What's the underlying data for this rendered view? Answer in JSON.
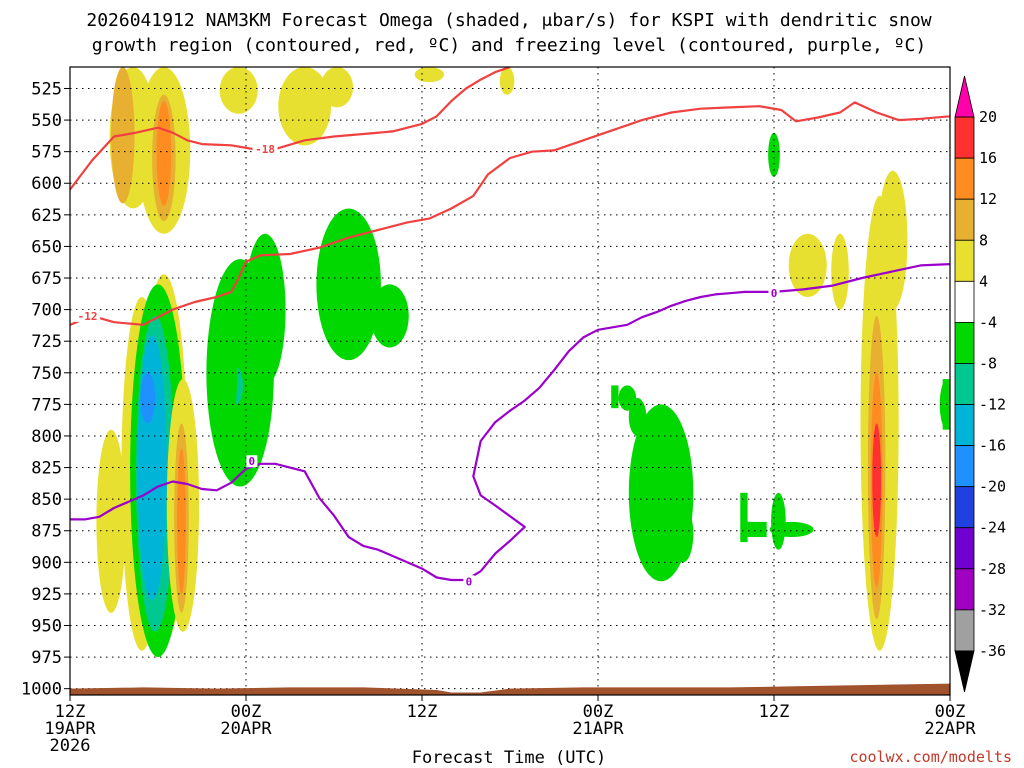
{
  "chart_data": {
    "type": "heatmap",
    "title_line1": "2026041912 NAM3KM Forecast Omega (shaded, μbar/s) for KSPI with dendritic snow",
    "title_line2": "growth region (contoured, red, ºC) and freezing level (contoured, purple, ºC)",
    "xlabel": "Forecast Time (UTC)",
    "credit": "coolwx.com/modelts",
    "y_axis": {
      "ylim_hPa": [
        1005,
        508
      ],
      "ticks": [
        "525",
        "550",
        "575",
        "600",
        "625",
        "650",
        "675",
        "700",
        "725",
        "750",
        "775",
        "800",
        "825",
        "850",
        "875",
        "900",
        "925",
        "950",
        "975",
        "1000"
      ]
    },
    "x_axis": {
      "xlim_hours": [
        0,
        60
      ],
      "ticks": [
        {
          "hour": 0,
          "line1": "12Z",
          "line2": "19APR",
          "line3": "2026"
        },
        {
          "hour": 12,
          "line1": "00Z",
          "line2": "20APR",
          "line3": ""
        },
        {
          "hour": 24,
          "line1": "12Z",
          "line2": "",
          "line3": ""
        },
        {
          "hour": 36,
          "line1": "00Z",
          "line2": "21APR",
          "line3": ""
        },
        {
          "hour": 48,
          "line1": "12Z",
          "line2": "",
          "line3": ""
        },
        {
          "hour": 60,
          "line1": "00Z",
          "line2": "22APR",
          "line3": ""
        }
      ]
    },
    "colorbar": {
      "labels": [
        "20",
        "16",
        "12",
        "8",
        "4",
        "-4",
        "-8",
        "-12",
        "-16",
        "-20",
        "-24",
        "-28",
        "-32",
        "-36"
      ],
      "bins": [
        {
          "lo": 20,
          "hi": 24,
          "color": "#ff00aa"
        },
        {
          "lo": 16,
          "hi": 20,
          "color": "#ff3030"
        },
        {
          "lo": 12,
          "hi": 16,
          "color": "#ff8c20"
        },
        {
          "lo": 8,
          "hi": 12,
          "color": "#e8b030"
        },
        {
          "lo": 4,
          "hi": 8,
          "color": "#e8e030"
        },
        {
          "lo": -4,
          "hi": 4,
          "color": "#ffffff"
        },
        {
          "lo": -8,
          "hi": -4,
          "color": "#00d800"
        },
        {
          "lo": -12,
          "hi": -8,
          "color": "#00c890"
        },
        {
          "lo": -16,
          "hi": -12,
          "color": "#00b4d8"
        },
        {
          "lo": -20,
          "hi": -16,
          "color": "#1e90ff"
        },
        {
          "lo": -24,
          "hi": -20,
          "color": "#2040e0"
        },
        {
          "lo": -28,
          "hi": -24,
          "color": "#7000d0"
        },
        {
          "lo": -32,
          "hi": -28,
          "color": "#a000c0"
        },
        {
          "lo": -36,
          "hi": -32,
          "color": "#a0a0a0"
        },
        {
          "lo": -40,
          "hi": -36,
          "color": "#000000"
        }
      ]
    },
    "series": [
      {
        "name": "temperature -12C / -18C (dendritic growth region)",
        "color": "#f04040",
        "labels": [
          {
            "text": "-18",
            "hour": 13.3,
            "p": 573
          },
          {
            "text": "-12",
            "hour": 1.2,
            "p": 705
          }
        ],
        "lines": [
          [
            [
              0,
              605
            ],
            [
              1.5,
              582
            ],
            [
              3,
              563
            ],
            [
              4.5,
              560
            ],
            [
              6,
              556
            ],
            [
              7,
              560
            ],
            [
              8,
              566
            ],
            [
              9,
              569
            ],
            [
              11,
              570
            ],
            [
              13,
              574
            ],
            [
              14,
              573
            ],
            [
              16,
              566
            ],
            [
              18,
              563
            ],
            [
              20,
              561
            ],
            [
              22,
              559
            ],
            [
              23,
              556
            ],
            [
              24,
              553
            ],
            [
              25,
              547
            ],
            [
              26,
              535
            ],
            [
              27,
              525
            ],
            [
              28,
              518
            ],
            [
              29,
              512
            ],
            [
              30,
              508
            ]
          ],
          [
            [
              0,
              712
            ],
            [
              1.5,
              705
            ],
            [
              3,
              710
            ],
            [
              5,
              712
            ],
            [
              7,
              700
            ],
            [
              8.5,
              694
            ],
            [
              10,
              690
            ],
            [
              11,
              686
            ],
            [
              11.5,
              675
            ],
            [
              12,
              662
            ],
            [
              13,
              657
            ],
            [
              15,
              656
            ],
            [
              17,
              651
            ],
            [
              19,
              643
            ],
            [
              21,
              637
            ],
            [
              23,
              631
            ],
            [
              24.5,
              628
            ],
            [
              26,
              620
            ],
            [
              27.5,
              610
            ],
            [
              28.5,
              593
            ],
            [
              30,
              580
            ],
            [
              31.5,
              575
            ],
            [
              33,
              574
            ],
            [
              35,
              566
            ],
            [
              37,
              558
            ],
            [
              39,
              550
            ],
            [
              41,
              544
            ],
            [
              43,
              541
            ],
            [
              45,
              540
            ],
            [
              47,
              539
            ],
            [
              48.5,
              542
            ],
            [
              49.5,
              551
            ],
            [
              51,
              548
            ],
            [
              52.5,
              544
            ],
            [
              53.5,
              536
            ],
            [
              55,
              544
            ],
            [
              56.5,
              550
            ],
            [
              58,
              549
            ],
            [
              60,
              547
            ]
          ]
        ]
      },
      {
        "name": "freezing level 0C",
        "color": "#9b00cc",
        "labels": [
          {
            "text": "0",
            "hour": 12.4,
            "p": 820
          },
          {
            "text": "0",
            "hour": 27.2,
            "p": 915
          },
          {
            "text": "0",
            "hour": 48.0,
            "p": 687
          }
        ],
        "lines": [
          [
            [
              0,
              866
            ],
            [
              1,
              866
            ],
            [
              2,
              864
            ],
            [
              3,
              857
            ],
            [
              4,
              852
            ],
            [
              5,
              847
            ],
            [
              6,
              840
            ],
            [
              7,
              836
            ],
            [
              8,
              838
            ],
            [
              9,
              842
            ],
            [
              10,
              843
            ],
            [
              11,
              837
            ],
            [
              12,
              826
            ],
            [
              13,
              822
            ],
            [
              14,
              822
            ],
            [
              15,
              825
            ],
            [
              16,
              828
            ],
            [
              17,
              849
            ],
            [
              18,
              863
            ],
            [
              19,
              880
            ],
            [
              20,
              887
            ],
            [
              21,
              890
            ],
            [
              22,
              895
            ],
            [
              23,
              900
            ],
            [
              24,
              905
            ],
            [
              25,
              912
            ],
            [
              26,
              914
            ],
            [
              27,
              914
            ],
            [
              28,
              907
            ],
            [
              29,
              893
            ],
            [
              30,
              883
            ],
            [
              31,
              872
            ],
            [
              29,
              855
            ],
            [
              28,
              847
            ],
            [
              27.5,
              832
            ],
            [
              28,
              804
            ],
            [
              29,
              789
            ],
            [
              30,
              780
            ],
            [
              31,
              772
            ],
            [
              32,
              762
            ],
            [
              33,
              748
            ],
            [
              34,
              733
            ],
            [
              35,
              722
            ],
            [
              36,
              716
            ],
            [
              37,
              714
            ],
            [
              38,
              712
            ],
            [
              39,
              706
            ],
            [
              40,
              702
            ],
            [
              41,
              697
            ],
            [
              42,
              693
            ],
            [
              43,
              690
            ],
            [
              44,
              688
            ],
            [
              45,
              687
            ],
            [
              46,
              686
            ],
            [
              48,
              686
            ],
            [
              50,
              684
            ],
            [
              52,
              681
            ],
            [
              54,
              675
            ],
            [
              56,
              670
            ],
            [
              58,
              665
            ],
            [
              60,
              664
            ]
          ]
        ]
      }
    ],
    "shading": [
      {
        "value": 5,
        "hour": 4.3,
        "p_bot": 620,
        "p_top": 508,
        "w": 1.6
      },
      {
        "value": 9,
        "hour": 3.6,
        "p_bot": 616,
        "p_top": 508,
        "w": 0.8
      },
      {
        "value": 5,
        "hour": 6.4,
        "p_bot": 640,
        "p_top": 508,
        "w": 1.8
      },
      {
        "value": 9,
        "hour": 6.4,
        "p_bot": 630,
        "p_top": 530,
        "w": 0.8
      },
      {
        "value": 13,
        "hour": 6.4,
        "p_bot": 618,
        "p_top": 535,
        "w": 0.5
      },
      {
        "value": 5,
        "hour": 11.5,
        "p_bot": 545,
        "p_top": 508,
        "w": 1.3
      },
      {
        "value": 5,
        "hour": 16,
        "p_bot": 570,
        "p_top": 508,
        "w": 1.8
      },
      {
        "value": 5,
        "hour": 18.2,
        "p_bot": 540,
        "p_top": 508,
        "w": 1.1
      },
      {
        "value": 5,
        "hour": 24.5,
        "p_bot": 520,
        "p_top": 508,
        "w": 1.0
      },
      {
        "value": 5,
        "hour": 29.8,
        "p_bot": 530,
        "p_top": 508,
        "w": 0.5
      },
      {
        "value": 5,
        "hour": 2.8,
        "p_bot": 940,
        "p_top": 795,
        "w": 1.0
      },
      {
        "value": 5,
        "hour": 4.9,
        "p_bot": 970,
        "p_top": 690,
        "w": 1.4
      },
      {
        "value": 5,
        "hour": 6.4,
        "p_bot": 965,
        "p_top": 672,
        "w": 1.6
      },
      {
        "value": -6,
        "hour": 6.0,
        "p_bot": 975,
        "p_top": 680,
        "w": 1.9
      },
      {
        "value": -10,
        "hour": 5.8,
        "p_bot": 955,
        "p_top": 705,
        "w": 1.3
      },
      {
        "value": -14,
        "hour": 5.6,
        "p_bot": 930,
        "p_top": 720,
        "w": 1.0
      },
      {
        "value": -18,
        "hour": 5.3,
        "p_bot": 790,
        "p_top": 750,
        "w": 0.5
      },
      {
        "value": 5,
        "hour": 7.7,
        "p_bot": 955,
        "p_top": 755,
        "w": 1.1
      },
      {
        "value": 9,
        "hour": 7.6,
        "p_bot": 940,
        "p_top": 790,
        "w": 0.5
      },
      {
        "value": 13,
        "hour": 7.6,
        "p_bot": 925,
        "p_top": 810,
        "w": 0.3
      },
      {
        "value": -6,
        "hour": 11.6,
        "p_bot": 840,
        "p_top": 660,
        "w": 2.3
      },
      {
        "value": -10,
        "hour": 11.3,
        "p_bot": 775,
        "p_top": 745,
        "w": 0.5
      },
      {
        "value": -6,
        "hour": 13.3,
        "p_bot": 760,
        "p_top": 640,
        "w": 1.4
      },
      {
        "value": -6,
        "hour": 10.5,
        "p_bot": 800,
        "p_top": 700,
        "w": 0.9
      },
      {
        "value": -6,
        "hour": 19.0,
        "p_bot": 740,
        "p_top": 620,
        "w": 2.2
      },
      {
        "value": -6,
        "hour": 21.8,
        "p_bot": 730,
        "p_top": 680,
        "w": 1.3
      },
      {
        "value": -6,
        "hour": 40.3,
        "p_bot": 915,
        "p_top": 775,
        "w": 2.2
      },
      {
        "value": -6,
        "hour": 38.7,
        "p_bot": 800,
        "p_top": 770,
        "w": 0.6
      },
      {
        "value": -6,
        "hour": 38.0,
        "p_bot": 780,
        "p_top": 760,
        "w": 0.6
      },
      {
        "value": -6,
        "hour": 41.8,
        "p_bot": 900,
        "p_top": 855,
        "w": 0.7
      },
      {
        "value": -6,
        "hour": 48.0,
        "p_bot": 595,
        "p_top": 560,
        "w": 0.4
      },
      {
        "value": -6,
        "hour": 48.3,
        "p_bot": 890,
        "p_top": 845,
        "w": 0.5
      },
      {
        "value": -6,
        "hour": 49.2,
        "p_bot": 880,
        "p_top": 868,
        "w": 1.5
      },
      {
        "value": 5,
        "hour": 50.3,
        "p_bot": 690,
        "p_top": 640,
        "w": 1.3
      },
      {
        "value": 5,
        "hour": 52.5,
        "p_bot": 700,
        "p_top": 640,
        "w": 0.6
      },
      {
        "value": 5,
        "hour": 55.2,
        "p_bot": 970,
        "p_top": 610,
        "w": 1.3
      },
      {
        "value": 5,
        "hour": 56.1,
        "p_bot": 700,
        "p_top": 590,
        "w": 1.0
      },
      {
        "value": 9,
        "hour": 55.0,
        "p_bot": 945,
        "p_top": 705,
        "w": 0.6
      },
      {
        "value": 13,
        "hour": 55.0,
        "p_bot": 920,
        "p_top": 750,
        "w": 0.4
      },
      {
        "value": 17,
        "hour": 55.0,
        "p_bot": 880,
        "p_top": 790,
        "w": 0.3
      },
      {
        "value": -6,
        "hour": 59.8,
        "p_bot": 795,
        "p_top": 755,
        "w": 0.5
      }
    ],
    "rects": [
      {
        "value": -6,
        "hour0": 36.9,
        "hour1": 37.4,
        "p_bot": 778,
        "p_top": 760
      },
      {
        "value": -6,
        "hour0": 45.7,
        "hour1": 46.2,
        "p_bot": 884,
        "p_top": 845
      },
      {
        "value": -6,
        "hour0": 46.2,
        "hour1": 47.5,
        "p_bot": 880,
        "p_top": 868
      },
      {
        "value": -6,
        "hour0": 59.5,
        "hour1": 60.0,
        "p_bot": 795,
        "p_top": 755
      }
    ],
    "terrain": {
      "color": "#a0522d",
      "points": [
        [
          0,
          1000
        ],
        [
          5,
          999
        ],
        [
          10,
          1000
        ],
        [
          15,
          999
        ],
        [
          20,
          999
        ],
        [
          25,
          1001
        ],
        [
          26,
          1003
        ],
        [
          28,
          1003
        ],
        [
          30,
          1000
        ],
        [
          35,
          999
        ],
        [
          40,
          999
        ],
        [
          45,
          999
        ],
        [
          50,
          998
        ],
        [
          55,
          997
        ],
        [
          60,
          996
        ]
      ]
    }
  }
}
